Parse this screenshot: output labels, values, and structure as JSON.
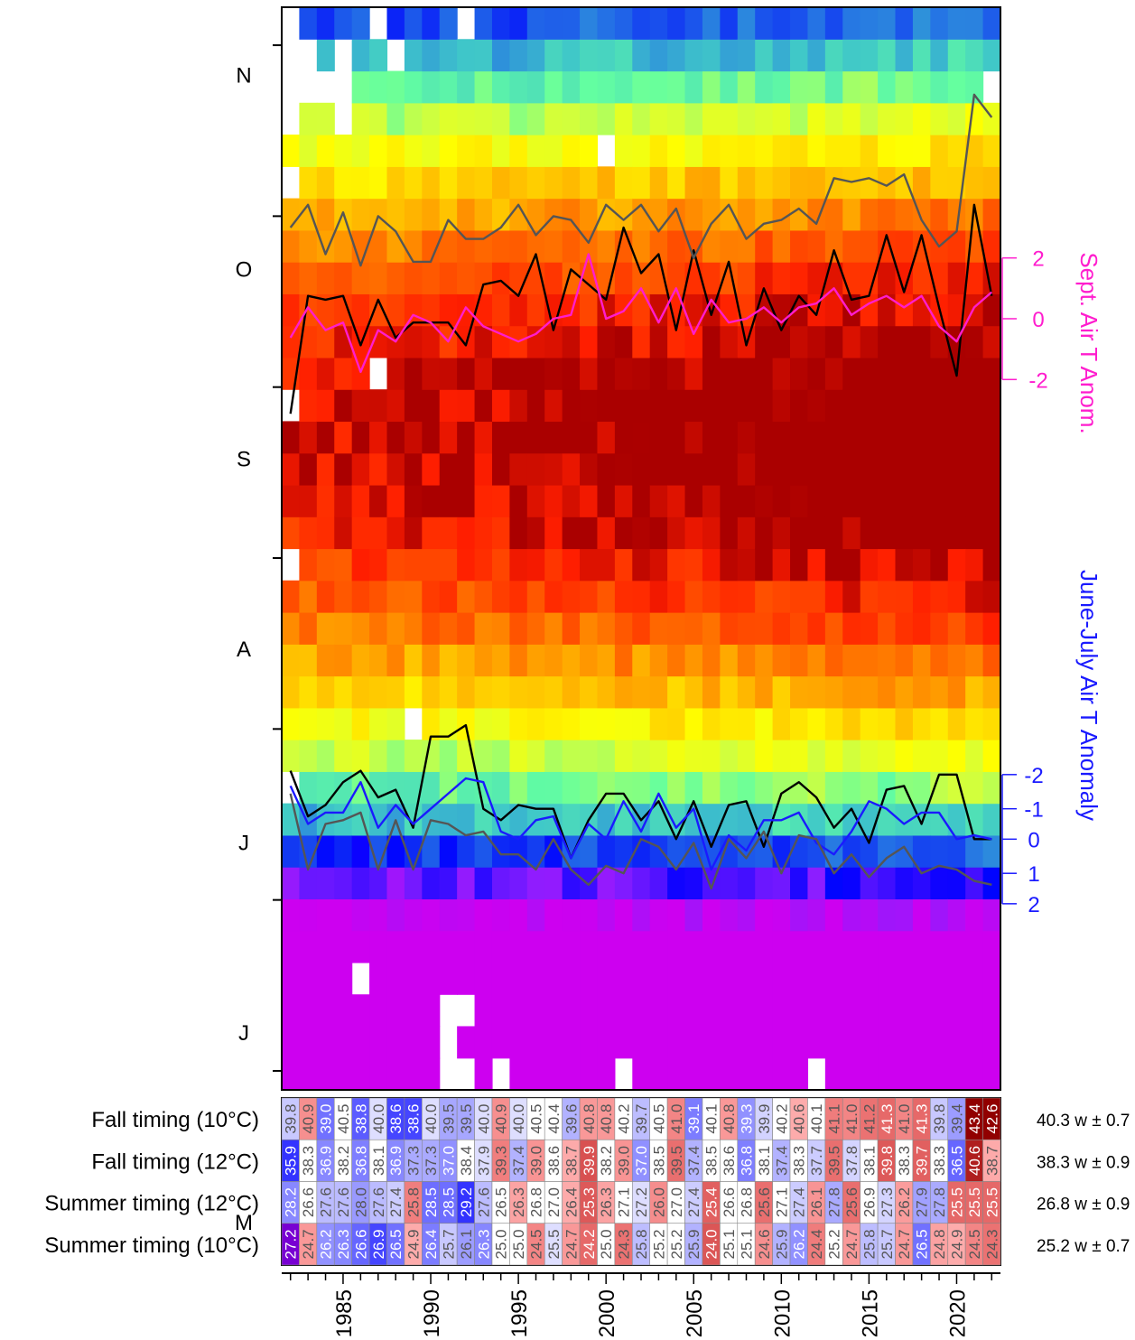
{
  "chart_data": {
    "type": "heatmap",
    "title": "",
    "xlabel": "",
    "ylabel": "",
    "years": [
      1982,
      1983,
      1984,
      1985,
      1986,
      1987,
      1988,
      1989,
      1990,
      1991,
      1992,
      1993,
      1994,
      1995,
      1996,
      1997,
      1998,
      1999,
      2000,
      2001,
      2002,
      2003,
      2004,
      2005,
      2006,
      2007,
      2008,
      2009,
      2010,
      2011,
      2012,
      2013,
      2014,
      2015,
      2016,
      2017,
      2018,
      2019,
      2020,
      2021,
      2022
    ],
    "x_tick_labels": [
      "1985",
      "1990",
      "1995",
      "2000",
      "2005",
      "2010",
      "2015",
      "2020"
    ],
    "y_month_labels": [
      "N",
      "O",
      "S",
      "A",
      "J",
      "J",
      "M"
    ],
    "n_weeks_rows": 34,
    "heatmap_note": "weekly water temperature by year, May (bottom) to November (top)",
    "right_axis_top": {
      "label": "Sept. Air T Anom.",
      "ticks": [
        "2",
        "0",
        "-2"
      ],
      "color": "#ff1dce"
    },
    "right_axis_bottom": {
      "label": "June-July Air T Anomaly",
      "ticks": [
        "-2",
        "-1",
        "0",
        "1",
        "2"
      ],
      "color": "#1a1aff"
    },
    "series": [
      {
        "name": "",
        "color": "#000000",
        "values": [
          37.8,
          40.9,
          40.8,
          40.9,
          39.6,
          40.8,
          39.8,
          40.2,
          40.2,
          40.2,
          39.6,
          41.2,
          41.3,
          40.9,
          42.0,
          40.0,
          41.6,
          41.2,
          40.8,
          42.7,
          41.5,
          42.0,
          40.0,
          42.1,
          40.4,
          41.8,
          39.6,
          41.1,
          40.0,
          40.9,
          40.4,
          42.1,
          40.8,
          40.9,
          42.5,
          41.0,
          42.5,
          40.6,
          38.8,
          43.3,
          40.9
        ]
      },
      {
        "name": "",
        "color": "#ff1dce",
        "values": [
          39.8,
          40.6,
          40.0,
          40.2,
          38.9,
          40.0,
          39.7,
          40.4,
          40.2,
          39.7,
          40.6,
          40.1,
          39.9,
          39.7,
          39.9,
          40.3,
          40.4,
          42.0,
          40.3,
          40.5,
          41.1,
          40.2,
          41.1,
          39.9,
          40.8,
          40.2,
          40.3,
          40.6,
          40.2,
          40.6,
          40.7,
          41.1,
          40.4,
          40.7,
          40.9,
          40.6,
          40.9,
          40.1,
          39.7,
          40.6,
          41.0
        ]
      },
      {
        "name": "",
        "color": "#555555",
        "values": [
          42.7,
          43.3,
          42.0,
          43.1,
          41.7,
          43.0,
          42.6,
          41.8,
          41.8,
          42.9,
          42.4,
          42.4,
          42.7,
          43.3,
          42.5,
          43.0,
          42.9,
          42.3,
          43.3,
          42.9,
          43.3,
          42.6,
          43.2,
          41.9,
          42.8,
          43.3,
          42.4,
          42.8,
          42.9,
          43.2,
          42.8,
          44.0,
          43.9,
          44.0,
          43.8,
          44.1,
          42.9,
          42.2,
          42.6,
          46.2,
          45.6
        ]
      },
      {
        "name": "",
        "color": "#000000",
        "values": [
          28.4,
          27.2,
          27.5,
          28.1,
          28.4,
          27.7,
          27.9,
          26.9,
          29.3,
          29.3,
          29.6,
          27.4,
          27.1,
          27.5,
          27.4,
          27.4,
          26.1,
          27.1,
          27.8,
          27.8,
          27.1,
          27.6,
          26.6,
          27.6,
          26.4,
          27.5,
          27.6,
          26.4,
          27.8,
          28.1,
          27.7,
          26.9,
          27.4,
          26.5,
          27.9,
          28.0,
          27.0,
          28.3,
          28.3,
          26.6,
          26.6
        ]
      },
      {
        "name": "",
        "color": "#1a1aff",
        "values": [
          28.0,
          27.0,
          27.3,
          27.3,
          28.1,
          26.9,
          27.5,
          27.0,
          27.4,
          27.8,
          28.2,
          28.1,
          26.8,
          26.6,
          27.1,
          27.2,
          26.1,
          27.0,
          26.6,
          27.6,
          26.8,
          27.8,
          26.9,
          27.4,
          25.8,
          26.7,
          26.3,
          27.1,
          27.1,
          27.3,
          26.5,
          26.2,
          26.8,
          27.6,
          27.4,
          27.0,
          27.3,
          27.3,
          26.6,
          26.7,
          26.6
        ]
      },
      {
        "name": "",
        "color": "#555555",
        "values": [
          27.8,
          25.8,
          27.0,
          27.1,
          27.3,
          25.8,
          27.1,
          25.8,
          27.1,
          27.0,
          26.7,
          26.8,
          26.2,
          26.2,
          25.8,
          26.6,
          25.8,
          25.4,
          25.9,
          25.7,
          26.6,
          26.4,
          25.8,
          26.5,
          25.3,
          26.6,
          26.1,
          26.8,
          25.7,
          26.7,
          26.6,
          25.7,
          26.2,
          25.6,
          26.1,
          26.4,
          25.7,
          25.9,
          25.8,
          25.5,
          25.4
        ]
      }
    ],
    "table": {
      "rows": [
        {
          "label": "Fall timing (10°C)",
          "summary": "40.3 w ± 0.7",
          "values": [
            "39.8",
            "40.9",
            "39.0",
            "40.5",
            "38.8",
            "40.0",
            "38.6",
            "38.6",
            "40.0",
            "39.5",
            "39.5",
            "40.0",
            "40.9",
            "40.0",
            "40.5",
            "40.4",
            "39.6",
            "40.8",
            "40.8",
            "40.2",
            "39.7",
            "40.5",
            "41.0",
            "39.1",
            "40.1",
            "40.8",
            "39.3",
            "39.9",
            "40.2",
            "40.6",
            "40.1",
            "41.1",
            "41.0",
            "41.2",
            "41.3",
            "41.0",
            "41.3",
            "39.8",
            "39.4",
            "43.4",
            "42.6"
          ]
        },
        {
          "label": "Fall timing (12°C)",
          "summary": "38.3 w ± 0.9",
          "values": [
            "35.9",
            "38.3",
            "36.9",
            "38.2",
            "36.8",
            "38.1",
            "36.9",
            "37.3",
            "37.3",
            "37.0",
            "38.4",
            "37.9",
            "39.3",
            "37.4",
            "39.0",
            "38.6",
            "38.7",
            "39.9",
            "38.2",
            "39.0",
            "37.0",
            "38.5",
            "39.5",
            "37.4",
            "38.5",
            "38.6",
            "36.8",
            "38.1",
            "37.4",
            "38.3",
            "37.7",
            "39.5",
            "37.8",
            "38.1",
            "39.8",
            "38.3",
            "39.7",
            "38.3",
            "36.5",
            "40.6",
            "38.7"
          ]
        },
        {
          "label": "Summer timing (12°C)",
          "summary": "26.8 w ± 0.9",
          "values": [
            "28.2",
            "26.6",
            "27.6",
            "27.6",
            "28.0",
            "27.6",
            "27.4",
            "25.8",
            "28.5",
            "28.5",
            "29.2",
            "27.6",
            "26.5",
            "26.3",
            "26.8",
            "27.0",
            "26.4",
            "25.3",
            "26.3",
            "27.1",
            "27.2",
            "26.0",
            "27.0",
            "27.4",
            "25.4",
            "26.6",
            "26.8",
            "25.6",
            "27.1",
            "27.4",
            "26.1",
            "27.8",
            "25.6",
            "26.9",
            "27.3",
            "26.2",
            "27.9",
            "27.8",
            "25.5",
            "25.5",
            "25.5"
          ]
        },
        {
          "label": "Summer timing (10°C)",
          "summary": "25.2 w ± 0.7",
          "values": [
            "27.2",
            "24.7",
            "26.2",
            "26.3",
            "26.6",
            "26.9",
            "26.5",
            "24.9",
            "26.4",
            "25.7",
            "26.1",
            "26.3",
            "25.0",
            "25.0",
            "24.5",
            "25.5",
            "24.7",
            "24.2",
            "25.0",
            "24.3",
            "25.8",
            "25.2",
            "25.2",
            "25.9",
            "24.0",
            "25.1",
            "25.1",
            "24.6",
            "25.9",
            "26.2",
            "24.4",
            "25.2",
            "24.7",
            "25.8",
            "25.7",
            "24.7",
            "26.5",
            "24.8",
            "24.9",
            "24.5",
            "24.3"
          ]
        }
      ]
    }
  }
}
